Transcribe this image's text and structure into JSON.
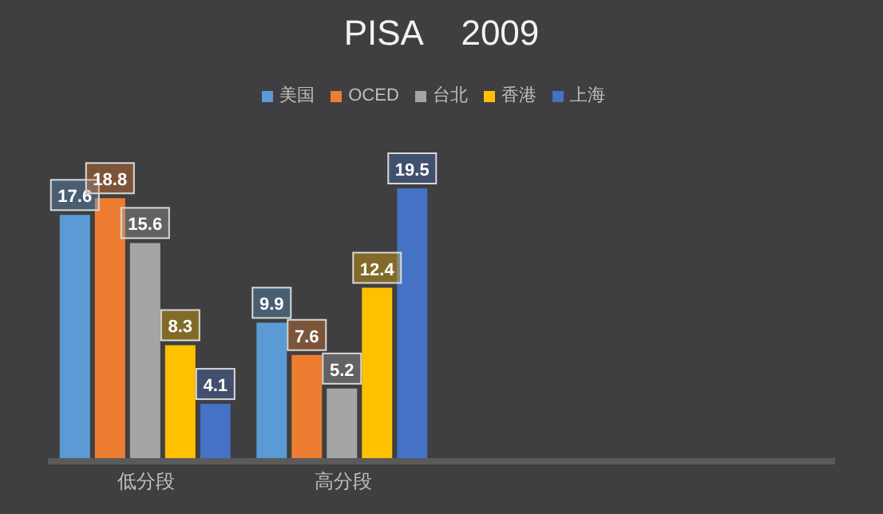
{
  "chart_data": {
    "type": "bar",
    "title": "PISA    2009",
    "categories": [
      "低分段",
      "高分段",
      null,
      null
    ],
    "series": [
      {
        "name": "美国",
        "color": "#5b9bd5",
        "values": [
          17.6,
          9.9,
          null,
          null
        ]
      },
      {
        "name": "OCED",
        "color": "#ed7d31",
        "values": [
          18.8,
          7.6,
          null,
          null
        ]
      },
      {
        "name": "台北",
        "color": "#a5a5a5",
        "values": [
          15.6,
          5.2,
          null,
          null
        ]
      },
      {
        "name": "香港",
        "color": "#ffc000",
        "values": [
          8.3,
          12.4,
          null,
          null
        ]
      },
      {
        "name": "上海",
        "color": "#4472c4",
        "values": [
          4.1,
          19.5,
          null,
          null
        ]
      }
    ],
    "data_labels": true,
    "legend": "top",
    "grid": false
  }
}
